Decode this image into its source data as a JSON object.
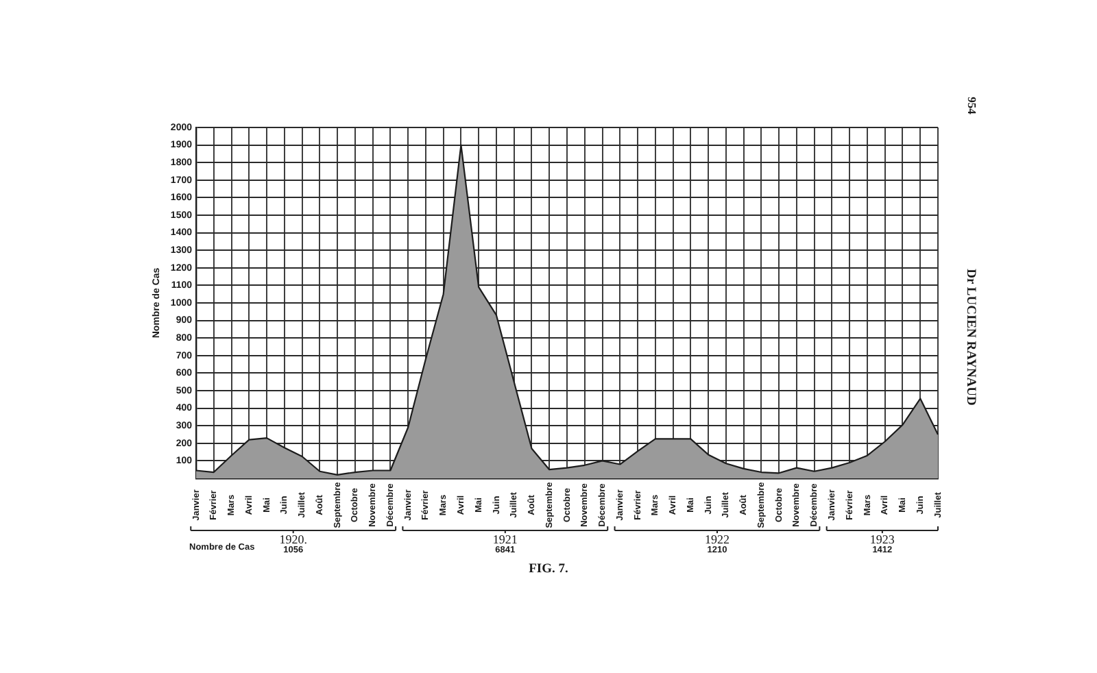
{
  "chart_data": {
    "type": "area",
    "ylabel": "Nombre de Cas",
    "categories": [
      "Janvier",
      "Février",
      "Mars",
      "Avril",
      "Mai",
      "Juin",
      "Juillet",
      "Août",
      "Septembre",
      "Octobre",
      "Novembre",
      "Décembre",
      "Janvier",
      "Février",
      "Mars",
      "Avril",
      "Mai",
      "Juin",
      "Juillet",
      "Août",
      "Septembre",
      "Octobre",
      "Novembre",
      "Décembre",
      "Janvier",
      "Février",
      "Mars",
      "Avril",
      "Mai",
      "Juin",
      "Juillet",
      "Août",
      "Septembre",
      "Octobre",
      "Novembre",
      "Décembre",
      "Janvier",
      "Février",
      "Mars",
      "Avril",
      "Mai",
      "Juin",
      "Juillet"
    ],
    "series": [
      {
        "color": "#9a9a9a",
        "values": [
          45,
          35,
          130,
          220,
          230,
          175,
          125,
          40,
          20,
          35,
          45,
          45,
          290,
          680,
          1050,
          1900,
          1090,
          930,
          550,
          170,
          50,
          60,
          75,
          100,
          80,
          155,
          225,
          225,
          225,
          135,
          85,
          55,
          35,
          30,
          60,
          40,
          60,
          90,
          130,
          210,
          305,
          455,
          250
        ]
      }
    ],
    "ylim": [
      0,
      2000
    ],
    "yticks": [
      {
        "value": 0,
        "label": null
      },
      100,
      200,
      300,
      400,
      500,
      600,
      700,
      800,
      900,
      1000,
      1100,
      1200,
      1300,
      1400,
      1500,
      1600,
      1700,
      1800,
      1900,
      2000
    ],
    "grid": true,
    "annotations": [
      "1920.",
      "1056",
      "1921",
      "6841",
      "1922",
      "1210",
      "1923",
      "1412",
      "Nombre de Cas",
      "FIG. 7.",
      "Dr LUCIEN RAYNAUD",
      "954"
    ]
  }
}
